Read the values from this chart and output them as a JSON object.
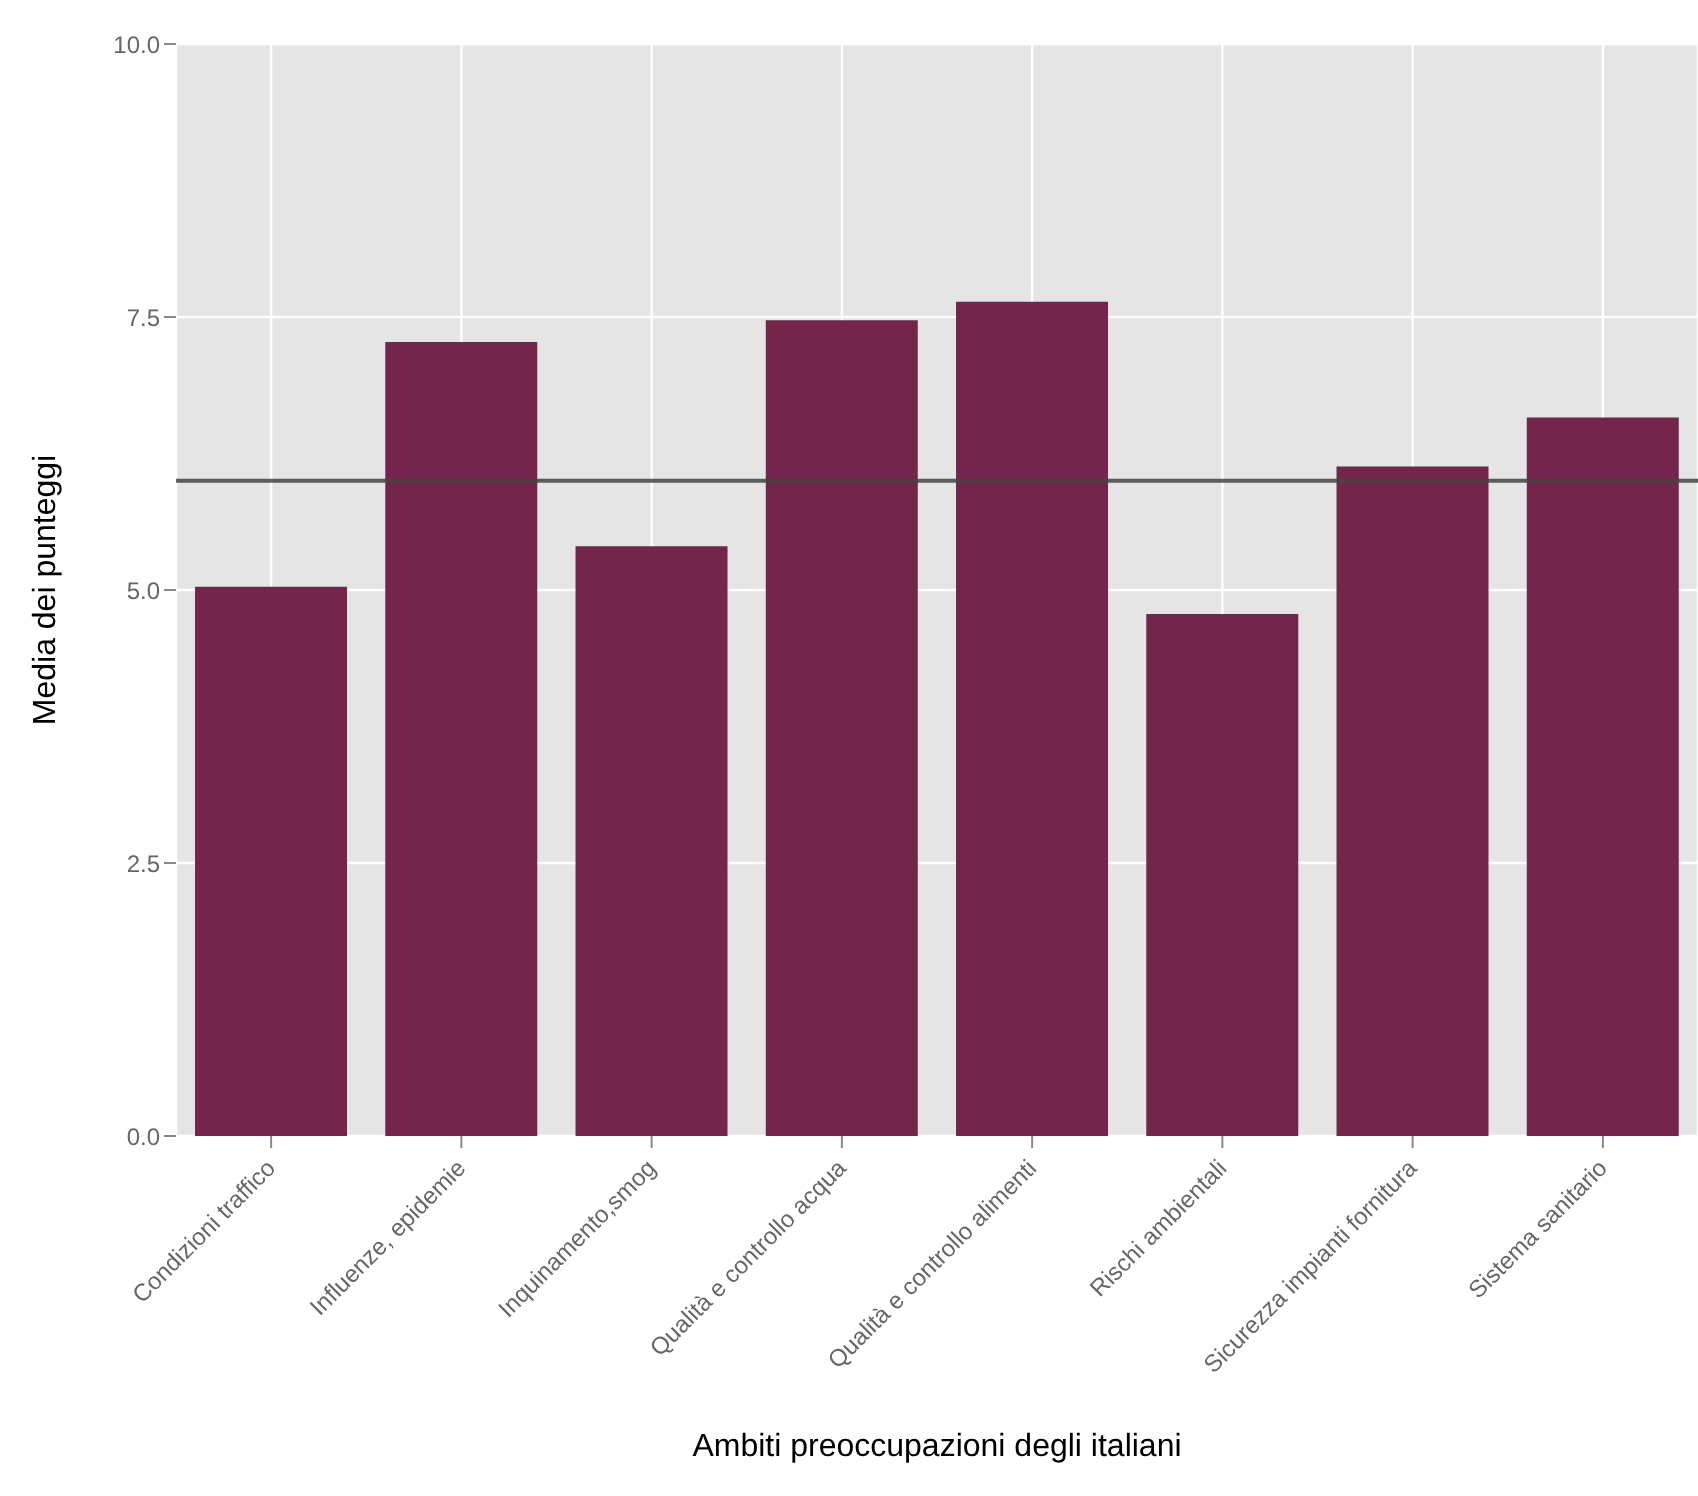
{
  "chart_data": {
    "type": "bar",
    "xlabel": "Ambiti preoccupazioni degli italiani",
    "ylabel": "Media dei punteggi",
    "categories": [
      "Condizioni traffico",
      "Influenze, epidemie",
      "Inquinamento,smog",
      "Qualità e controllo acqua",
      "Qualità e controllo alimenti",
      "Rischi ambientali",
      "Sicurezza impianti fornitura",
      "Sistema sanitario"
    ],
    "values": [
      5.03,
      7.27,
      5.4,
      7.47,
      7.64,
      4.78,
      6.13,
      6.58
    ],
    "color": "#74254b",
    "ylim": [
      0,
      10
    ],
    "yticks": [
      {
        "value": 0,
        "label": "0.0"
      },
      {
        "value": 2.5,
        "label": "2.5"
      },
      {
        "value": 5,
        "label": "5.0"
      },
      {
        "value": 7.5,
        "label": "7.5"
      },
      {
        "value": 10,
        "label": "10.0"
      }
    ],
    "ref_lines": [
      {
        "axis": "y",
        "value": 6,
        "color": "#444444"
      }
    ],
    "grid": true
  }
}
